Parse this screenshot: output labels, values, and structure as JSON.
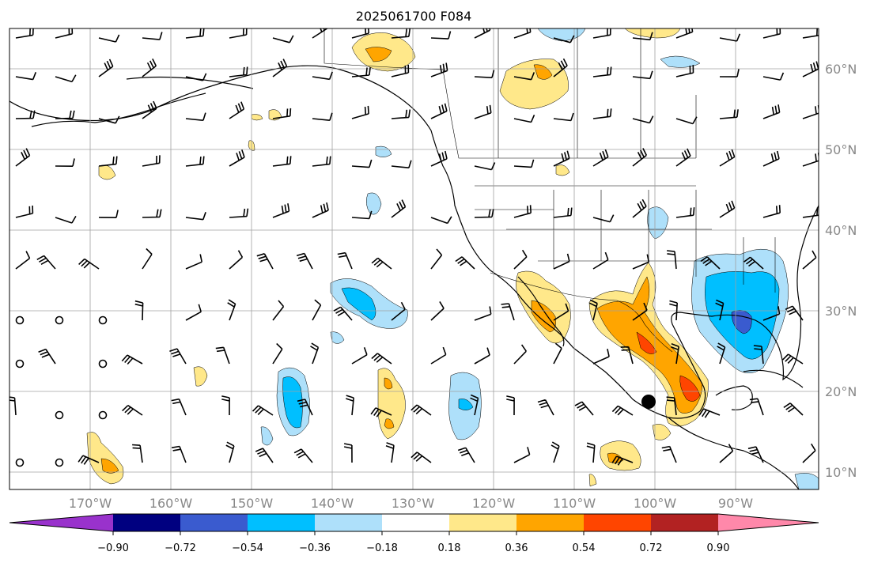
{
  "title": "2025061700 F084",
  "map": {
    "lon_range": [
      -180,
      -80
    ],
    "lat_range": [
      8,
      65
    ],
    "lat_labels": [
      "60°N",
      "50°N",
      "40°N",
      "30°N",
      "20°N",
      "10°N"
    ],
    "lat_values": [
      60,
      50,
      40,
      30,
      20,
      10
    ],
    "lon_labels": [
      "170°W",
      "160°W",
      "150°W",
      "140°W",
      "130°W",
      "120°W",
      "110°W",
      "100°W",
      "90°W"
    ],
    "lon_values": [
      -170,
      -160,
      -150,
      -140,
      -130,
      -120,
      -110,
      -100,
      -90
    ],
    "grid": true,
    "marker": {
      "lon": -101,
      "lat": 18.8
    }
  },
  "colorbar": {
    "colors": [
      "#9932cc",
      "#000080",
      "#3a5bcf",
      "#00bfff",
      "#aee0fa",
      "#ffffff",
      "#ffe88a",
      "#ffa500",
      "#ff4500",
      "#b22222",
      "#ff88aa"
    ],
    "tick_labels": [
      "−0.90",
      "−0.72",
      "−0.54",
      "−0.36",
      "−0.18",
      "0.18",
      "0.36",
      "0.54",
      "0.72",
      "0.90"
    ]
  },
  "anomaly_palette": {
    "neg_light": "#aee0fa",
    "neg_mid": "#00bfff",
    "neg_dark": "#3a5bcf",
    "pos_light": "#ffe88a",
    "pos_mid": "#ffa500",
    "pos_dark": "#ff4500"
  }
}
